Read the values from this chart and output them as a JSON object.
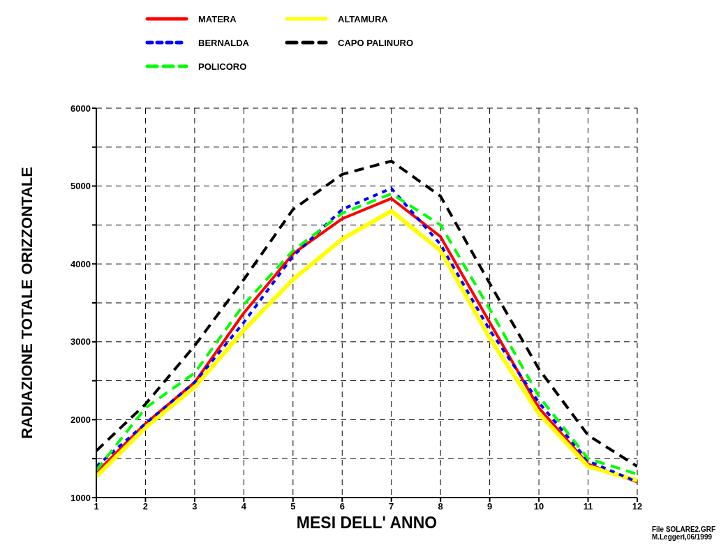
{
  "chart_data": {
    "type": "line",
    "xlabel": "MESI  DELL' ANNO",
    "ylabel": "RADIAZIONE TOTALE ORIZZONTALE",
    "x": [
      1,
      2,
      3,
      4,
      5,
      6,
      7,
      8,
      9,
      10,
      11,
      12
    ],
    "xlim": [
      1,
      12
    ],
    "xticks": [
      1,
      2,
      3,
      4,
      5,
      6,
      7,
      8,
      9,
      10,
      11,
      12
    ],
    "ylim": [
      1000,
      6000
    ],
    "yticks": [
      1000,
      {
        "value": 1500,
        "label": null
      },
      2000,
      {
        "value": 2500,
        "label": null
      },
      3000,
      {
        "value": 3500,
        "label": null
      },
      4000,
      {
        "value": 4500,
        "label": null
      },
      5000,
      {
        "value": 5500,
        "label": null
      },
      6000
    ],
    "grid": true,
    "legend": "top left",
    "marker": "none",
    "series": [
      {
        "name": "MATERA",
        "color": "#ff0000",
        "line_style": "solid",
        "values": [
          1320,
          1950,
          2480,
          3370,
          4130,
          4580,
          4840,
          4350,
          3250,
          2150,
          1430,
          1200
        ]
      },
      {
        "name": "ALTAMURA",
        "color": "#ffff00",
        "line_style": "solid",
        "values": [
          1270,
          1900,
          2420,
          3150,
          3800,
          4320,
          4680,
          4170,
          3050,
          2080,
          1400,
          1220
        ]
      },
      {
        "name": "BERNALDA",
        "color": "#0000ff",
        "line_style": "dotted",
        "values": [
          1400,
          1950,
          2480,
          3250,
          4100,
          4700,
          4970,
          4250,
          3150,
          2220,
          1470,
          1200
        ]
      },
      {
        "name": "CAPO PALINURO",
        "color": "#000000",
        "line_style": "dashed",
        "values": [
          1600,
          2200,
          2950,
          3800,
          4700,
          5150,
          5320,
          4870,
          3750,
          2650,
          1800,
          1400
        ]
      },
      {
        "name": "POLICORO",
        "color": "#00ff00",
        "line_style": "dashed",
        "values": [
          1350,
          2150,
          2600,
          3480,
          4170,
          4650,
          4900,
          4500,
          3420,
          2300,
          1500,
          1300
        ]
      }
    ],
    "annotations": [
      "File SOLARE2.GRF",
      "M.Leggeri,06/1999"
    ]
  }
}
